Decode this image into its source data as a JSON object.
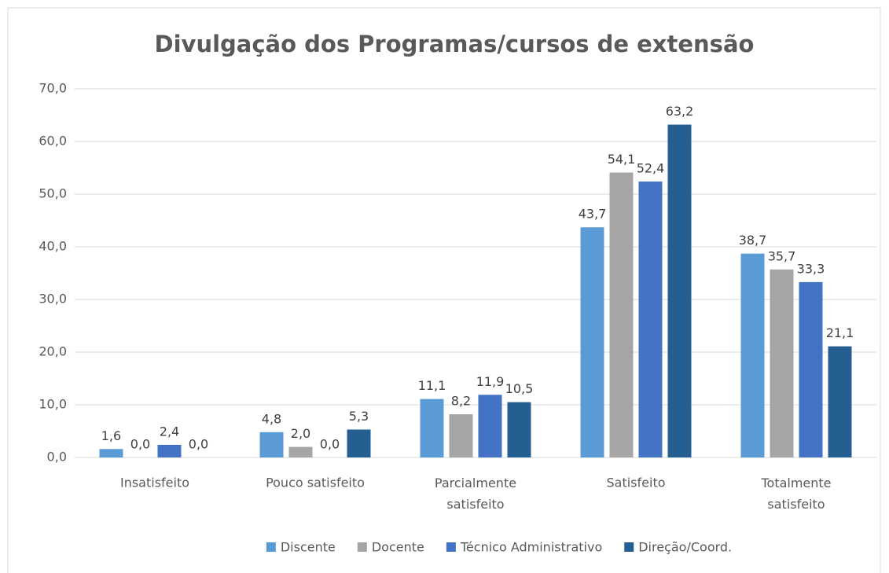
{
  "chart_data": {
    "type": "bar",
    "title": "Divulgação dos Programas/cursos de extensão",
    "categories": [
      "Insatisfeito",
      "Pouco satisfeito",
      "Parcialmente satisfeito",
      "Satisfeito",
      "Totalmente satisfeito"
    ],
    "series": [
      {
        "name": "Discente",
        "color": "#5b9bd5",
        "values": [
          1.6,
          4.8,
          11.1,
          43.7,
          38.7
        ],
        "value_labels": [
          "1,6",
          "4,8",
          "11,1",
          "43,7",
          "38,7"
        ]
      },
      {
        "name": "Docente",
        "color": "#a5a5a5",
        "values": [
          0.0,
          2.0,
          8.2,
          54.1,
          35.7
        ],
        "value_labels": [
          "0,0",
          "2,0",
          "8,2",
          "54,1",
          "35,7"
        ]
      },
      {
        "name": "Técnico Administrativo",
        "color": "#4472c4",
        "values": [
          2.4,
          0.0,
          11.9,
          52.4,
          33.3
        ],
        "value_labels": [
          "2,4",
          "0,0",
          "11,9",
          "52,4",
          "33,3"
        ]
      },
      {
        "name": "Direção/Coord.",
        "color": "#255e91",
        "values": [
          0.0,
          5.3,
          10.5,
          63.2,
          21.1
        ],
        "value_labels": [
          "0,0",
          "5,3",
          "10,5",
          "63,2",
          "21,1"
        ]
      }
    ],
    "ylim": [
      0,
      70
    ],
    "yticks": [
      {
        "value": 0,
        "label": "0,0"
      },
      {
        "value": 10,
        "label": "10,0"
      },
      {
        "value": 20,
        "label": "20,0"
      },
      {
        "value": 30,
        "label": "30,0"
      },
      {
        "value": 40,
        "label": "40,0"
      },
      {
        "value": 50,
        "label": "50,0"
      },
      {
        "value": 60,
        "label": "60,0"
      },
      {
        "value": 70,
        "label": "70,0"
      }
    ],
    "grid": true,
    "legend": "bottom"
  }
}
